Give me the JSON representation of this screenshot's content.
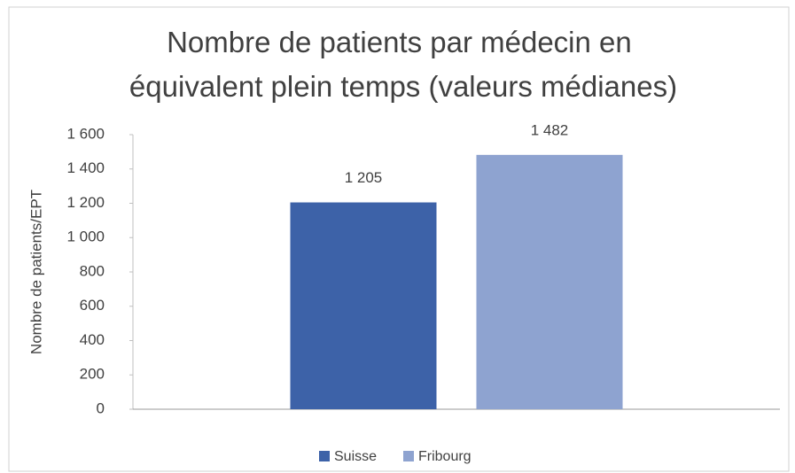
{
  "chart_data": {
    "type": "bar",
    "title": "Nombre de patients par médecin en équivalent plein temps (valeurs médianes)",
    "y_label": "Nombre de patients/EPT",
    "categories": [
      null
    ],
    "series": [
      {
        "name": "Suisse",
        "color": "#3d62a8",
        "values": [
          1205
        ],
        "value_labels": [
          "1 205"
        ]
      },
      {
        "name": "Fribourg",
        "color": "#8ea3d0",
        "values": [
          1482
        ],
        "value_labels": [
          "1 482"
        ]
      }
    ],
    "ylim": [
      0,
      1600
    ],
    "yticks": [
      0,
      200,
      400,
      600,
      800,
      {
        "value": 1000,
        "label": "1 000"
      },
      {
        "value": 1200,
        "label": "1 200"
      },
      {
        "value": 1400,
        "label": "1 400"
      },
      {
        "value": 1600,
        "label": "1 600"
      }
    ],
    "grid": false,
    "legend": "bottom"
  }
}
